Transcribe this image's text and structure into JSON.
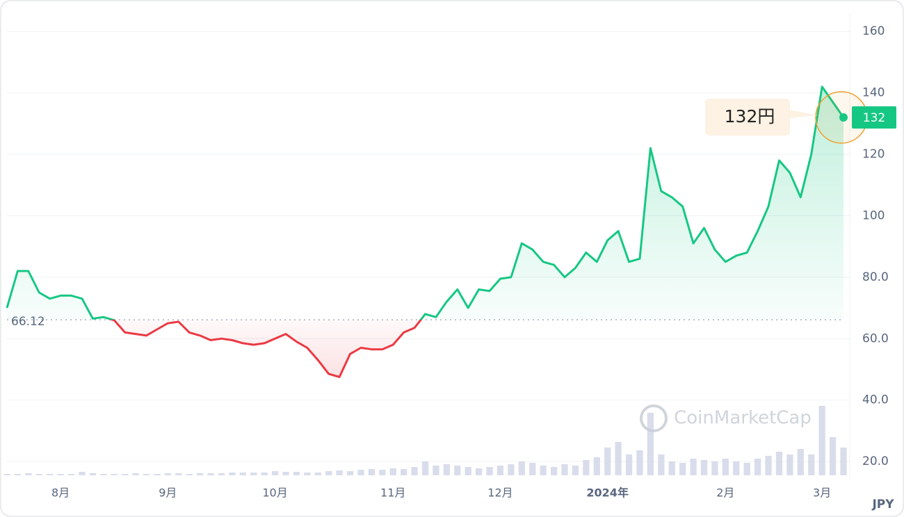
{
  "chart_data": {
    "type": "line",
    "categories": [
      null,
      null,
      null,
      null,
      null,
      "8月",
      null,
      null,
      null,
      null,
      null,
      null,
      null,
      null,
      null,
      "9月",
      null,
      null,
      null,
      null,
      null,
      null,
      null,
      null,
      null,
      "10月",
      null,
      null,
      null,
      null,
      null,
      null,
      null,
      null,
      null,
      null,
      "11月",
      null,
      null,
      null,
      null,
      null,
      null,
      null,
      null,
      null,
      "12月",
      null,
      null,
      null,
      null,
      null,
      null,
      null,
      null,
      null,
      "2024年",
      null,
      null,
      null,
      null,
      null,
      null,
      null,
      null,
      null,
      null,
      "2月",
      null,
      null,
      null,
      null,
      null,
      null,
      null,
      null,
      "3月",
      null,
      null
    ],
    "values": [
      70,
      82,
      82,
      75,
      73,
      74,
      74,
      73,
      66.5,
      67,
      66,
      62,
      61.5,
      61,
      63,
      65,
      65.5,
      62,
      61,
      59.5,
      60,
      59.5,
      58.5,
      58,
      58.5,
      60,
      61.5,
      59,
      57,
      53,
      48.5,
      47.5,
      55,
      57,
      56.5,
      56.5,
      58,
      62,
      63.5,
      68,
      67,
      72,
      76,
      70,
      76,
      75.5,
      79.5,
      80,
      91,
      89,
      85,
      84,
      80,
      83,
      88,
      85,
      92,
      95,
      85,
      86,
      122,
      108,
      106,
      103,
      91,
      96,
      89,
      85,
      87,
      88,
      95,
      103,
      118,
      114,
      106,
      120,
      142,
      137,
      132
    ],
    "volume": [
      2,
      2,
      3,
      2,
      2,
      2,
      2,
      5,
      3,
      2,
      2,
      2,
      3,
      2,
      2,
      3,
      3,
      2,
      3,
      3,
      3,
      4,
      4,
      4,
      4,
      6,
      5,
      5,
      4,
      4,
      6,
      7,
      6,
      8,
      9,
      8,
      10,
      9,
      12,
      20,
      14,
      16,
      14,
      12,
      10,
      12,
      14,
      16,
      20,
      18,
      14,
      12,
      16,
      14,
      22,
      26,
      40,
      48,
      30,
      36,
      90,
      30,
      20,
      18,
      24,
      22,
      20,
      24,
      20,
      18,
      24,
      28,
      34,
      30,
      38,
      30,
      100,
      55,
      40
    ],
    "baseline": 66.12,
    "current_price": 132,
    "current_price_label": "132円",
    "y_axis_unit": "JPY",
    "watermark": "CoinMarketCap",
    "colors": {
      "up": "#16c784",
      "down": "#ea3943"
    },
    "ylim": [
      15.5,
      165.7
    ],
    "yticks": [
      {
        "value": 20,
        "label": "20.0"
      },
      {
        "value": 40,
        "label": "40.0"
      },
      {
        "value": 60,
        "label": "60.0"
      },
      {
        "value": 80,
        "label": "80.0"
      },
      100,
      120,
      140,
      160
    ],
    "grid": true
  }
}
